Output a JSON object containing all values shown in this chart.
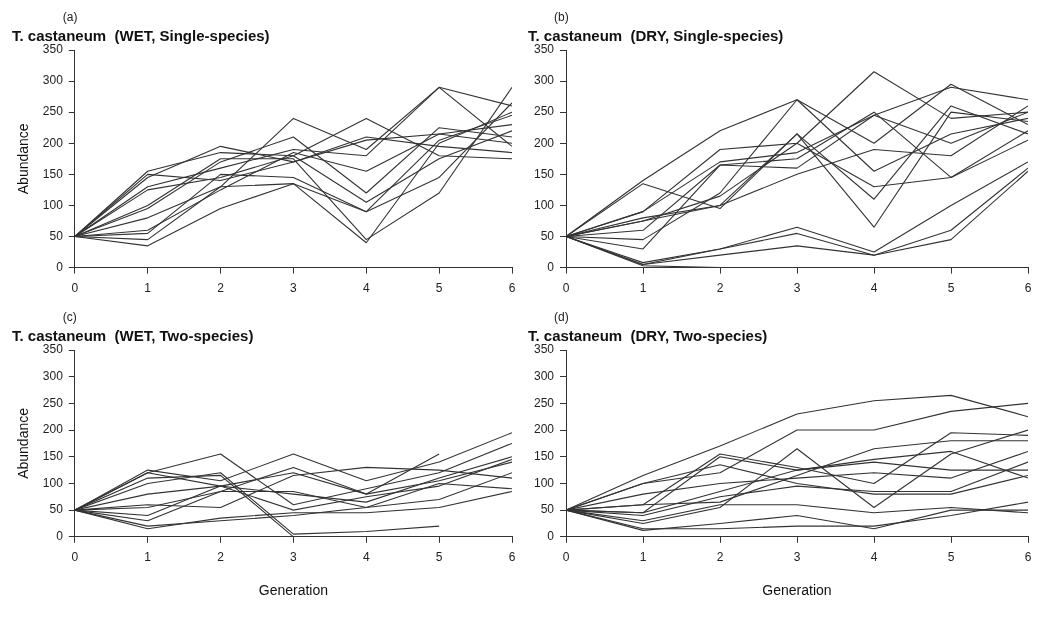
{
  "chart_data": [
    {
      "type": "line",
      "title": "T. castaneum  (WET, Single-species)",
      "ylabel": "Abundance",
      "annotations": [
        "(a)"
      ],
      "x": [
        0,
        1,
        2,
        3,
        4,
        5,
        6
      ],
      "xlim": [
        0,
        6
      ],
      "xticks": [
        0,
        1,
        2,
        3,
        4,
        5,
        6
      ],
      "ylim": [
        0,
        350
      ],
      "yticks": [
        0,
        50,
        100,
        150,
        200,
        250,
        300,
        350
      ],
      "grid": false,
      "legend": false,
      "marker": "none",
      "line_style": "solid",
      "series": [
        {
          "color": "#333333",
          "values": [
            50,
            155,
            185,
            180,
            240,
            180,
            175
          ]
        },
        {
          "color": "#333333",
          "values": [
            50,
            130,
            160,
            190,
            180,
            290,
            195
          ]
        },
        {
          "color": "#333333",
          "values": [
            50,
            45,
            130,
            240,
            190,
            290,
            260
          ]
        },
        {
          "color": "#333333",
          "values": [
            50,
            100,
            175,
            175,
            45,
            120,
            290
          ]
        },
        {
          "color": "#333333",
          "values": [
            50,
            35,
            95,
            135,
            90,
            145,
            265
          ]
        },
        {
          "color": "#333333",
          "values": [
            50,
            145,
            195,
            170,
            205,
            215,
            200
          ]
        },
        {
          "color": "#333333",
          "values": [
            50,
            80,
            130,
            135,
            40,
            200,
            250
          ]
        },
        {
          "color": "#333333",
          "values": [
            50,
            125,
            145,
            180,
            105,
            175,
            220
          ]
        },
        {
          "color": "#333333",
          "values": [
            50,
            55,
            150,
            145,
            90,
            205,
            245
          ]
        },
        {
          "color": "#333333",
          "values": [
            50,
            95,
            170,
            210,
            120,
            225,
            210
          ]
        },
        {
          "color": "#333333",
          "values": [
            50,
            60,
            125,
            185,
            155,
            215,
            230
          ]
        },
        {
          "color": "#333333",
          "values": [
            50,
            150,
            140,
            170,
            210,
            195,
            185
          ]
        }
      ]
    },
    {
      "type": "line",
      "title": "T. castaneum  (DRY, Single-species)",
      "annotations": [
        "(b)"
      ],
      "x": [
        0,
        1,
        2,
        3,
        4,
        5,
        6
      ],
      "xlim": [
        0,
        6
      ],
      "xticks": [
        0,
        1,
        2,
        3,
        4,
        5,
        6
      ],
      "ylim": [
        0,
        350
      ],
      "yticks": [
        0,
        50,
        100,
        150,
        200,
        250,
        300,
        350
      ],
      "grid": false,
      "legend": false,
      "marker": "none",
      "line_style": "solid",
      "series": [
        {
          "color": "#333333",
          "values": [
            50,
            140,
            220,
            270,
            200,
            295,
            230
          ]
        },
        {
          "color": "#333333",
          "values": [
            50,
            90,
            190,
            200,
            315,
            240,
            250
          ]
        },
        {
          "color": "#333333",
          "values": [
            50,
            30,
            165,
            160,
            245,
            290,
            270
          ]
        },
        {
          "color": "#333333",
          "values": [
            50,
            5,
            30,
            65,
            25,
            100,
            170
          ]
        },
        {
          "color": "#333333",
          "values": [
            50,
            3,
            0,
            null,
            null,
            null,
            null
          ]
        },
        {
          "color": "#333333",
          "values": [
            50,
            8,
            30,
            55,
            20,
            45,
            155
          ]
        },
        {
          "color": "#333333",
          "values": [
            50,
            75,
            100,
            215,
            65,
            250,
            235
          ]
        },
        {
          "color": "#333333",
          "values": [
            50,
            80,
            100,
            150,
            190,
            180,
            260
          ]
        },
        {
          "color": "#333333",
          "values": [
            50,
            135,
            95,
            215,
            110,
            260,
            215
          ]
        },
        {
          "color": "#333333",
          "values": [
            50,
            60,
            165,
            175,
            250,
            145,
            205
          ]
        },
        {
          "color": "#333333",
          "values": [
            50,
            45,
            120,
            270,
            155,
            215,
            240
          ]
        },
        {
          "color": "#333333",
          "values": [
            50,
            75,
            115,
            200,
            130,
            145,
            220
          ]
        },
        {
          "color": "#333333",
          "values": [
            50,
            90,
            170,
            185,
            245,
            200,
            250
          ]
        },
        {
          "color": "#333333",
          "values": [
            50,
            5,
            20,
            35,
            20,
            60,
            160
          ]
        }
      ]
    },
    {
      "type": "line",
      "title": "T. castaneum  (WET, Two-species)",
      "xlabel": "Generation",
      "ylabel": "Abundance",
      "annotations": [
        "(c)"
      ],
      "x": [
        0,
        1,
        2,
        3,
        4,
        5,
        6
      ],
      "xlim": [
        0,
        6
      ],
      "xticks": [
        0,
        1,
        2,
        3,
        4,
        5,
        6
      ],
      "ylim": [
        0,
        350
      ],
      "yticks": [
        0,
        50,
        100,
        150,
        200,
        250,
        300,
        350
      ],
      "grid": false,
      "legend": false,
      "marker": "none",
      "line_style": "solid",
      "series": [
        {
          "color": "#333333",
          "values": [
            50,
            125,
            105,
            155,
            105,
            140,
            195
          ]
        },
        {
          "color": "#333333",
          "values": [
            50,
            120,
            155,
            60,
            90,
            120,
            175
          ]
        },
        {
          "color": "#333333",
          "values": [
            50,
            100,
            120,
            5,
            10,
            20,
            null
          ]
        },
        {
          "color": "#333333",
          "values": [
            50,
            110,
            115,
            0,
            0,
            0,
            null
          ]
        },
        {
          "color": "#333333",
          "values": [
            50,
            30,
            85,
            130,
            80,
            155,
            null
          ]
        },
        {
          "color": "#333333",
          "values": [
            50,
            80,
            95,
            50,
            75,
            95,
            145
          ]
        },
        {
          "color": "#333333",
          "values": [
            50,
            20,
            30,
            40,
            55,
            70,
            120
          ]
        },
        {
          "color": "#333333",
          "values": [
            50,
            15,
            35,
            45,
            45,
            55,
            85
          ]
        },
        {
          "color": "#333333",
          "values": [
            50,
            60,
            55,
            115,
            130,
            125,
            110
          ]
        },
        {
          "color": "#333333",
          "values": [
            50,
            55,
            85,
            85,
            55,
            100,
            90
          ]
        },
        {
          "color": "#333333",
          "values": [
            50,
            40,
            95,
            80,
            65,
            110,
            150
          ]
        },
        {
          "color": "#333333",
          "values": [
            50,
            120,
            95,
            120,
            80,
            105,
            140
          ]
        }
      ]
    },
    {
      "type": "line",
      "title": "T. castaneum  (DRY, Two-species)",
      "xlabel": "Generation",
      "annotations": [
        "(d)"
      ],
      "x": [
        0,
        1,
        2,
        3,
        4,
        5,
        6
      ],
      "xlim": [
        0,
        6
      ],
      "xticks": [
        0,
        1,
        2,
        3,
        4,
        5,
        6
      ],
      "ylim": [
        0,
        350
      ],
      "yticks": [
        0,
        50,
        100,
        150,
        200,
        250,
        300,
        350
      ],
      "grid": false,
      "legend": false,
      "marker": "none",
      "line_style": "solid",
      "series": [
        {
          "color": "#333333",
          "values": [
            50,
            115,
            170,
            230,
            255,
            265,
            225
          ]
        },
        {
          "color": "#333333",
          "values": [
            50,
            100,
            120,
            200,
            200,
            235,
            250
          ]
        },
        {
          "color": "#333333",
          "values": [
            50,
            60,
            155,
            130,
            100,
            195,
            190
          ]
        },
        {
          "color": "#333333",
          "values": [
            50,
            45,
            150,
            125,
            145,
            160,
            110
          ]
        },
        {
          "color": "#333333",
          "values": [
            50,
            25,
            55,
            165,
            55,
            155,
            200
          ]
        },
        {
          "color": "#333333",
          "values": [
            50,
            12,
            25,
            40,
            15,
            50,
            50
          ]
        },
        {
          "color": "#333333",
          "values": [
            50,
            15,
            15,
            20,
            20,
            40,
            65
          ]
        },
        {
          "color": "#333333",
          "values": [
            50,
            40,
            75,
            95,
            85,
            85,
            140
          ]
        },
        {
          "color": "#333333",
          "values": [
            50,
            80,
            100,
            110,
            120,
            110,
            160
          ]
        },
        {
          "color": "#333333",
          "values": [
            50,
            60,
            65,
            115,
            165,
            180,
            180
          ]
        },
        {
          "color": "#333333",
          "values": [
            50,
            30,
            60,
            60,
            45,
            55,
            45
          ]
        },
        {
          "color": "#333333",
          "values": [
            50,
            100,
            135,
            100,
            80,
            80,
            115
          ]
        },
        {
          "color": "#333333",
          "values": [
            50,
            45,
            85,
            125,
            140,
            125,
            125
          ]
        }
      ]
    }
  ]
}
